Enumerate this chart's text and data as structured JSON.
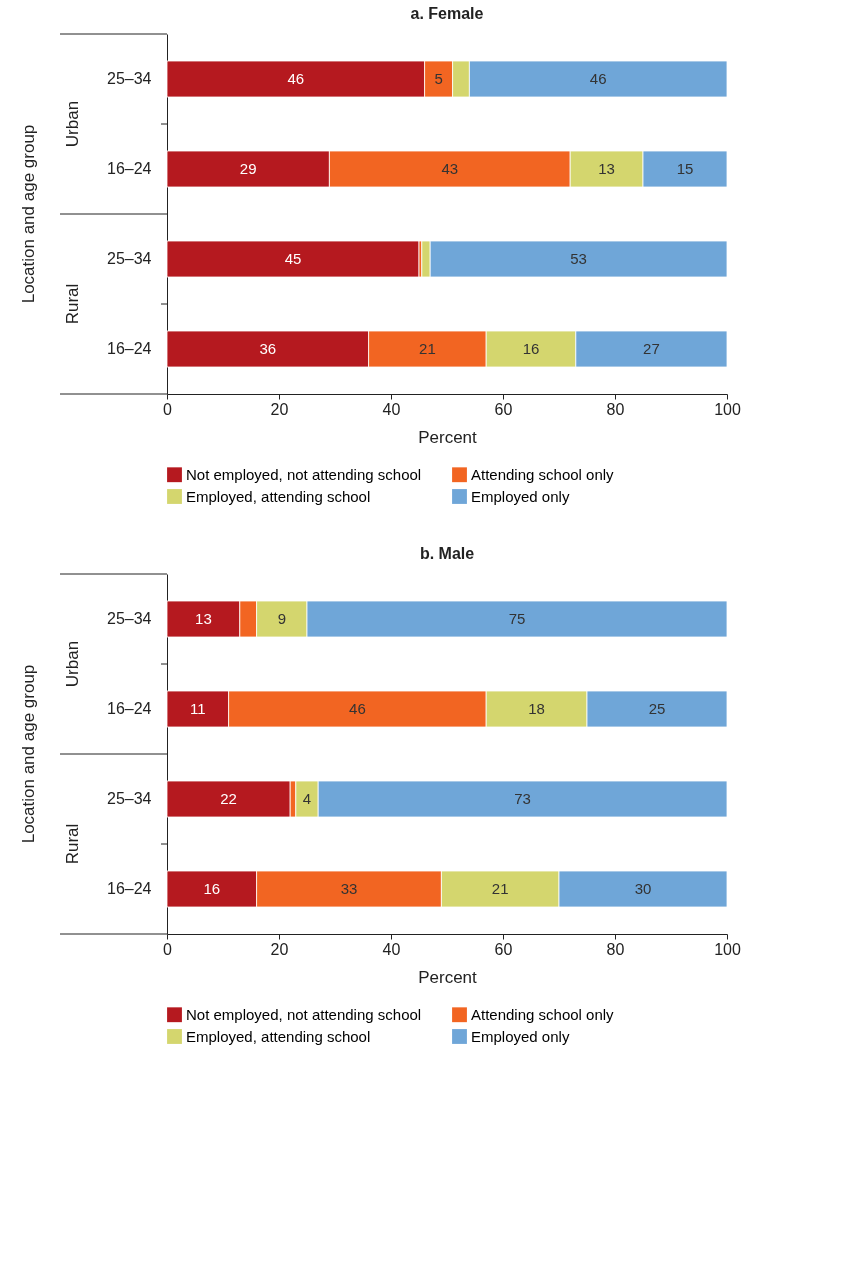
{
  "chart_data": [
    {
      "type": "bar",
      "orientation": "horizontal",
      "stacked": true,
      "title": "a. Female",
      "xlabel": "Percent",
      "ylabel": "Location and age group",
      "categories": [
        "25–34",
        "16–24",
        "25–34",
        "16–24"
      ],
      "annotations": [
        "Urban",
        "Rural"
      ],
      "xlim": [
        0,
        100
      ],
      "xticks": [
        0,
        20,
        40,
        60,
        80,
        100
      ],
      "grid": false,
      "legend": "bottom",
      "series": [
        {
          "name": "Not employed, not attending school",
          "color": "#b5191f",
          "values": [
            46,
            29,
            45,
            36
          ],
          "value_labels": [
            "46",
            "29",
            "45",
            "36"
          ]
        },
        {
          "name": "Attending school only",
          "color": "#f26522",
          "values": [
            5,
            43,
            0.5,
            21
          ],
          "value_labels": [
            "5",
            "43",
            null,
            "21"
          ]
        },
        {
          "name": "Employed, attending school",
          "color": "#d4d66e",
          "values": [
            3,
            13,
            1.5,
            16
          ],
          "value_labels": [
            null,
            "13",
            null,
            "16"
          ]
        },
        {
          "name": "Employed only",
          "color": "#6fa6d8",
          "values": [
            46,
            15,
            53,
            27
          ],
          "value_labels": [
            "46",
            "15",
            "53",
            "27"
          ]
        }
      ]
    },
    {
      "type": "bar",
      "orientation": "horizontal",
      "stacked": true,
      "title": "b. Male",
      "xlabel": "Percent",
      "ylabel": "Location and age group",
      "categories": [
        "25–34",
        "16–24",
        "25–34",
        "16–24"
      ],
      "annotations": [
        "Urban",
        "Rural"
      ],
      "xlim": [
        0,
        100
      ],
      "xticks": [
        0,
        20,
        40,
        60,
        80,
        100
      ],
      "grid": false,
      "legend": "bottom",
      "series": [
        {
          "name": "Not employed, not attending school",
          "color": "#b5191f",
          "values": [
            13,
            11,
            22,
            16
          ],
          "value_labels": [
            "13",
            "11",
            "22",
            "16"
          ]
        },
        {
          "name": "Attending school only",
          "color": "#f26522",
          "values": [
            3,
            46,
            1,
            33
          ],
          "value_labels": [
            null,
            "46",
            null,
            "33"
          ]
        },
        {
          "name": "Employed, attending school",
          "color": "#d4d66e",
          "values": [
            9,
            18,
            4,
            21
          ],
          "value_labels": [
            "9",
            "18",
            "4",
            "21"
          ]
        },
        {
          "name": "Employed only",
          "color": "#6fa6d8",
          "values": [
            75,
            25,
            73,
            30
          ],
          "value_labels": [
            "75",
            "25",
            "73",
            "30"
          ]
        }
      ]
    }
  ]
}
